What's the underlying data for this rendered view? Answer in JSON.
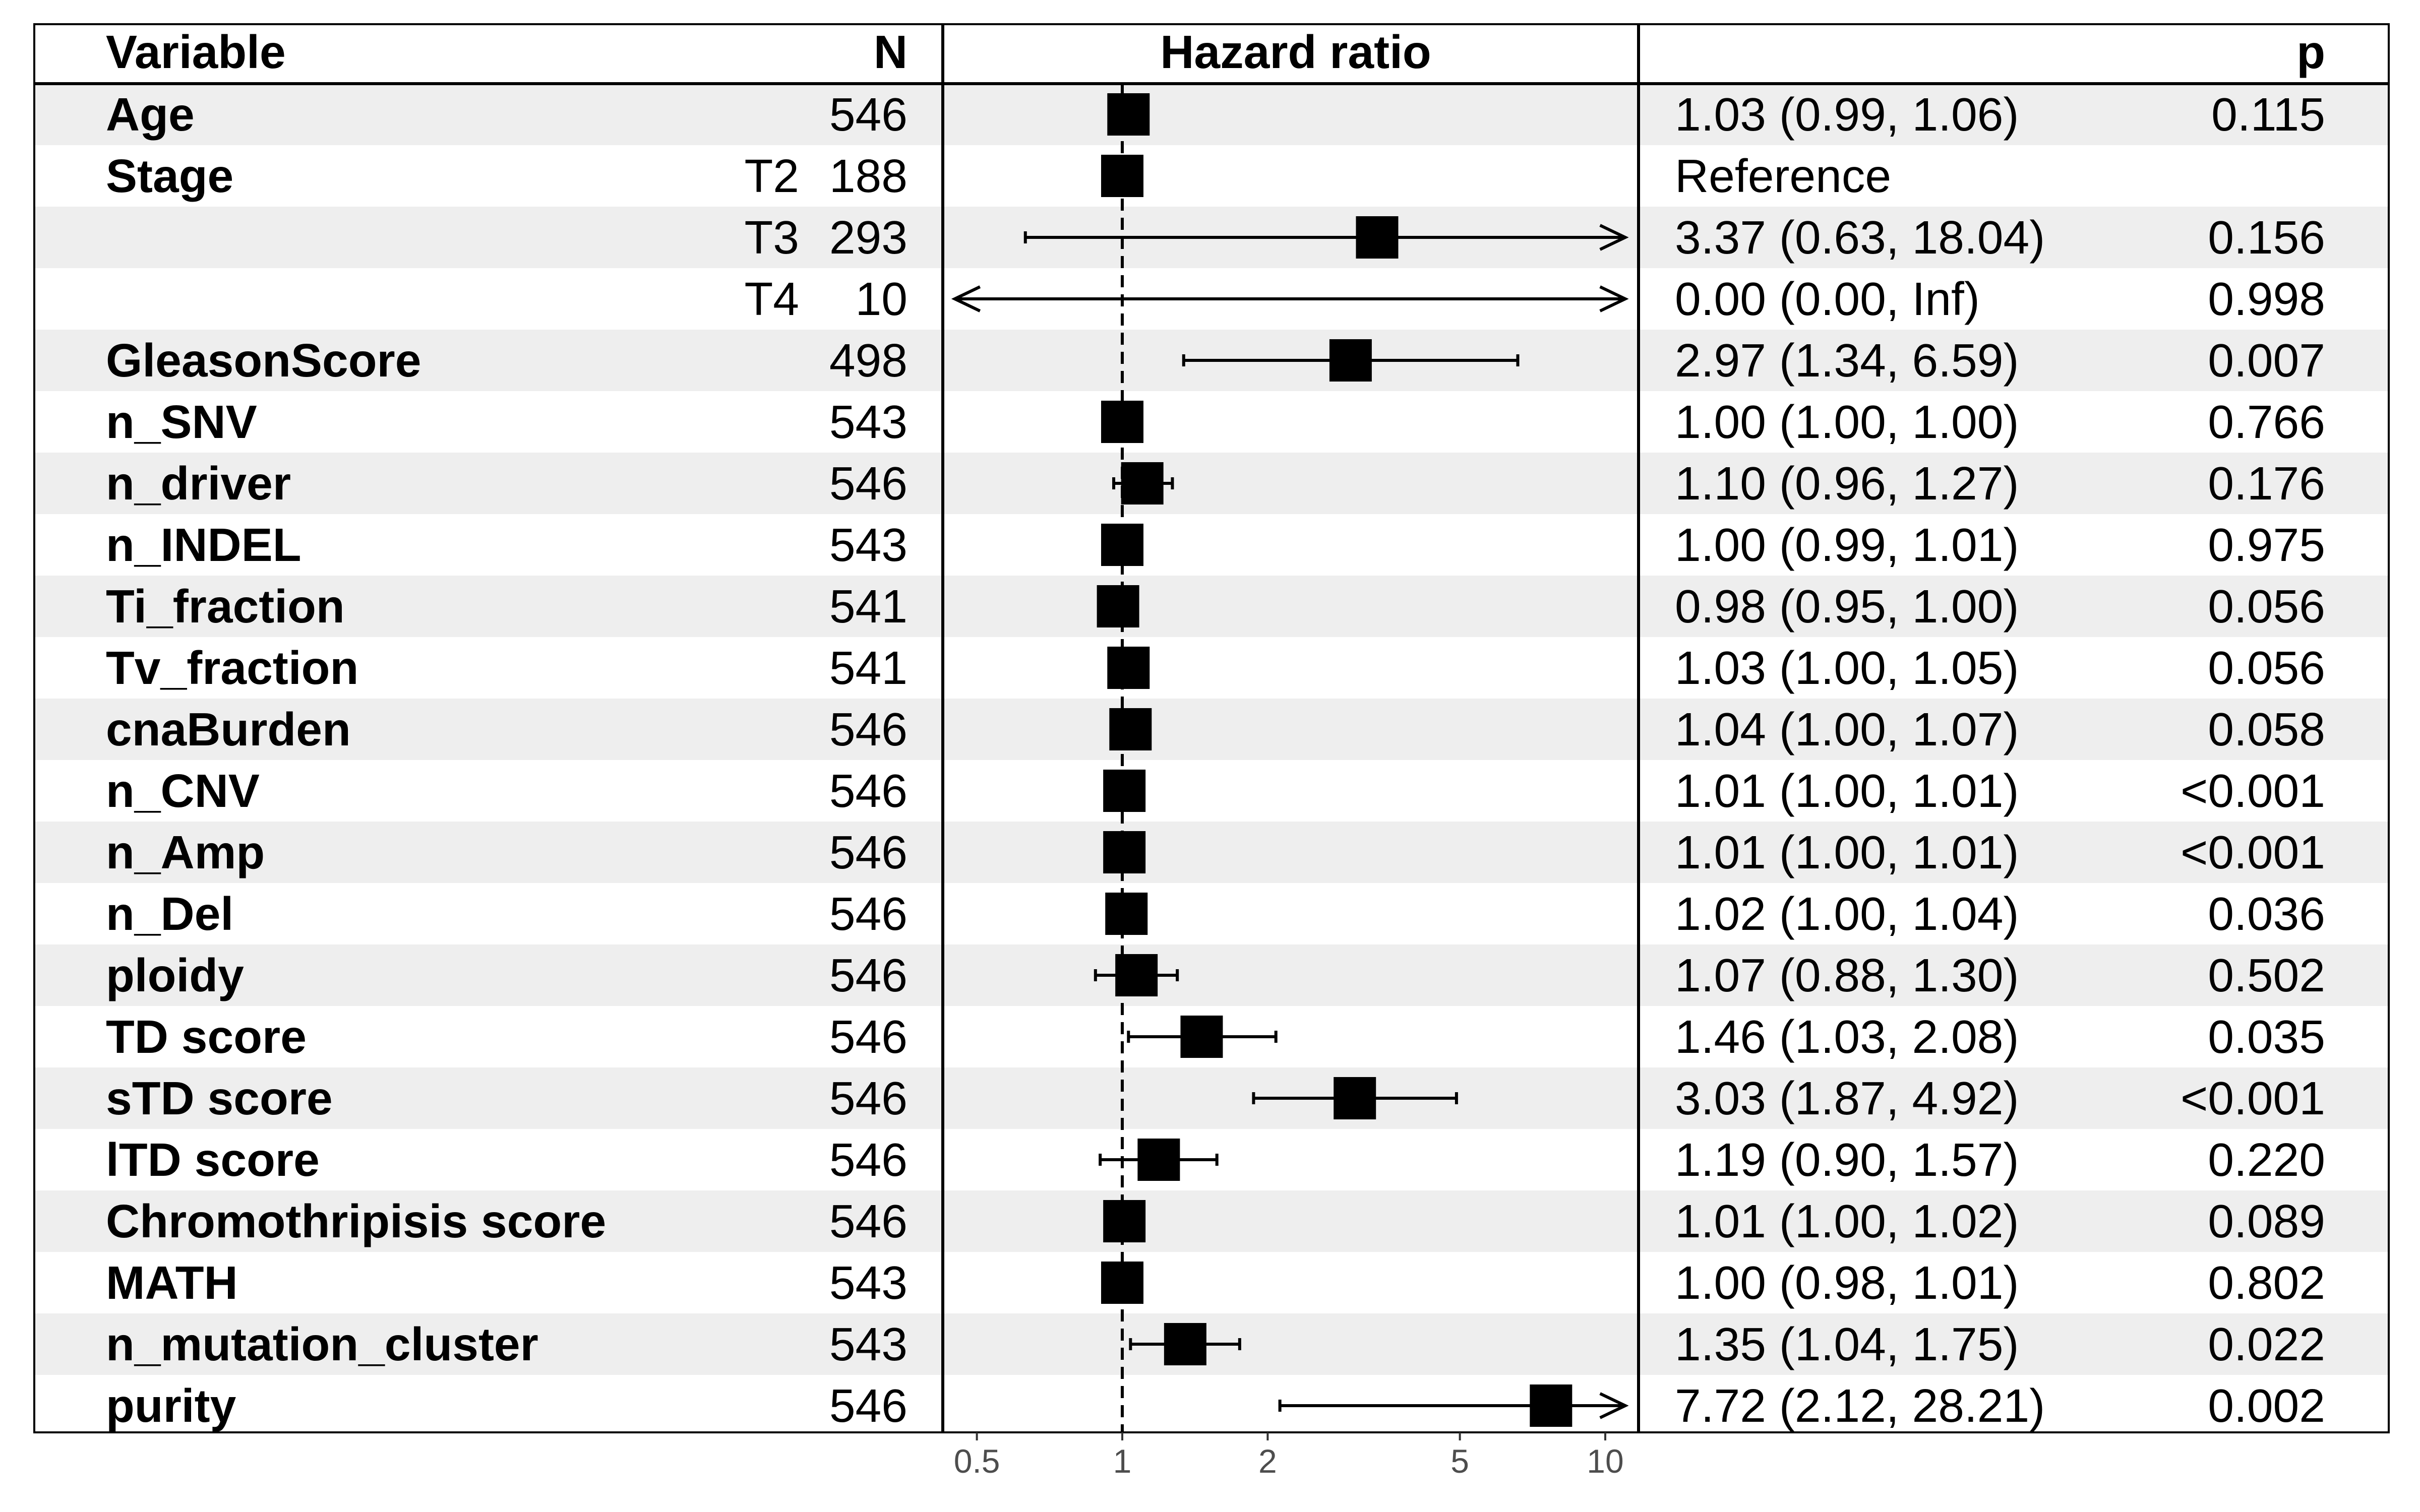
{
  "chart_data": {
    "type": "forest",
    "headers": {
      "variable": "Variable",
      "n": "N",
      "hazard_ratio": "Hazard ratio",
      "p": "p"
    },
    "x_scale": "log",
    "xlim": [
      0.45,
      11
    ],
    "x_ticks": [
      {
        "value": 0.5,
        "label": "0.5"
      },
      {
        "value": 1,
        "label": "1"
      },
      {
        "value": 2,
        "label": "2"
      },
      {
        "value": 5,
        "label": "5"
      },
      {
        "value": 10,
        "label": "10"
      }
    ],
    "reference_line": 1,
    "rows": [
      {
        "variable": "Age",
        "level": "",
        "n": "546",
        "hr": 1.03,
        "lower": 0.99,
        "upper": 1.06,
        "estimate": "1.03 (0.99, 1.06)",
        "p": "0.115"
      },
      {
        "variable": "Stage",
        "level": "T2",
        "n": "188",
        "hr": 1.0,
        "lower": null,
        "upper": null,
        "estimate": "Reference",
        "p": ""
      },
      {
        "variable": "",
        "level": "T3",
        "n": "293",
        "hr": 3.37,
        "lower": 0.63,
        "upper": 18.04,
        "estimate": "3.37 (0.63, 18.04)",
        "p": "0.156"
      },
      {
        "variable": "",
        "level": "T4",
        "n": "10",
        "hr": 0.0,
        "lower": 0.0,
        "upper": null,
        "estimate": "0.00 (0.00, Inf)",
        "p": "0.998"
      },
      {
        "variable": "GleasonScore",
        "level": "",
        "n": "498",
        "hr": 2.97,
        "lower": 1.34,
        "upper": 6.59,
        "estimate": "2.97 (1.34, 6.59)",
        "p": "0.007"
      },
      {
        "variable": "n_SNV",
        "level": "",
        "n": "543",
        "hr": 1.0,
        "lower": 1.0,
        "upper": 1.0,
        "estimate": "1.00 (1.00, 1.00)",
        "p": "0.766"
      },
      {
        "variable": "n_driver",
        "level": "",
        "n": "546",
        "hr": 1.1,
        "lower": 0.96,
        "upper": 1.27,
        "estimate": "1.10 (0.96, 1.27)",
        "p": "0.176"
      },
      {
        "variable": "n_INDEL",
        "level": "",
        "n": "543",
        "hr": 1.0,
        "lower": 0.99,
        "upper": 1.01,
        "estimate": "1.00 (0.99, 1.01)",
        "p": "0.975"
      },
      {
        "variable": "Ti_fraction",
        "level": "",
        "n": "541",
        "hr": 0.98,
        "lower": 0.95,
        "upper": 1.0,
        "estimate": "0.98 (0.95, 1.00)",
        "p": "0.056"
      },
      {
        "variable": "Tv_fraction",
        "level": "",
        "n": "541",
        "hr": 1.03,
        "lower": 1.0,
        "upper": 1.05,
        "estimate": "1.03 (1.00, 1.05)",
        "p": "0.056"
      },
      {
        "variable": "cnaBurden",
        "level": "",
        "n": "546",
        "hr": 1.04,
        "lower": 1.0,
        "upper": 1.07,
        "estimate": "1.04 (1.00, 1.07)",
        "p": "0.058"
      },
      {
        "variable": "n_CNV",
        "level": "",
        "n": "546",
        "hr": 1.01,
        "lower": 1.0,
        "upper": 1.01,
        "estimate": "1.01 (1.00, 1.01)",
        "p": "<0.001"
      },
      {
        "variable": "n_Amp",
        "level": "",
        "n": "546",
        "hr": 1.01,
        "lower": 1.0,
        "upper": 1.01,
        "estimate": "1.01 (1.00, 1.01)",
        "p": "<0.001"
      },
      {
        "variable": "n_Del",
        "level": "",
        "n": "546",
        "hr": 1.02,
        "lower": 1.0,
        "upper": 1.04,
        "estimate": "1.02 (1.00, 1.04)",
        "p": "0.036"
      },
      {
        "variable": "ploidy",
        "level": "",
        "n": "546",
        "hr": 1.07,
        "lower": 0.88,
        "upper": 1.3,
        "estimate": "1.07 (0.88, 1.30)",
        "p": "0.502"
      },
      {
        "variable": "TD score",
        "level": "",
        "n": "546",
        "hr": 1.46,
        "lower": 1.03,
        "upper": 2.08,
        "estimate": "1.46 (1.03, 2.08)",
        "p": "0.035"
      },
      {
        "variable": "sTD score",
        "level": "",
        "n": "546",
        "hr": 3.03,
        "lower": 1.87,
        "upper": 4.92,
        "estimate": "3.03 (1.87, 4.92)",
        "p": "<0.001"
      },
      {
        "variable": "lTD score",
        "level": "",
        "n": "546",
        "hr": 1.19,
        "lower": 0.9,
        "upper": 1.57,
        "estimate": "1.19 (0.90, 1.57)",
        "p": "0.220"
      },
      {
        "variable": "Chromothripisis score",
        "level": "",
        "n": "546",
        "hr": 1.01,
        "lower": 1.0,
        "upper": 1.02,
        "estimate": "1.01 (1.00, 1.02)",
        "p": "0.089"
      },
      {
        "variable": "MATH",
        "level": "",
        "n": "543",
        "hr": 1.0,
        "lower": 0.98,
        "upper": 1.01,
        "estimate": "1.00 (0.98, 1.01)",
        "p": "0.802"
      },
      {
        "variable": "n_mutation_cluster",
        "level": "",
        "n": "543",
        "hr": 1.35,
        "lower": 1.04,
        "upper": 1.75,
        "estimate": "1.35 (1.04, 1.75)",
        "p": "0.022"
      },
      {
        "variable": "purity",
        "level": "",
        "n": "546",
        "hr": 7.72,
        "lower": 2.12,
        "upper": 28.21,
        "estimate": "7.72 (2.12, 28.21)",
        "p": "0.002"
      }
    ],
    "colors": {
      "stripe": "#eeeeee",
      "marker": "#000000",
      "tick_text": "#4d4d4d"
    }
  }
}
